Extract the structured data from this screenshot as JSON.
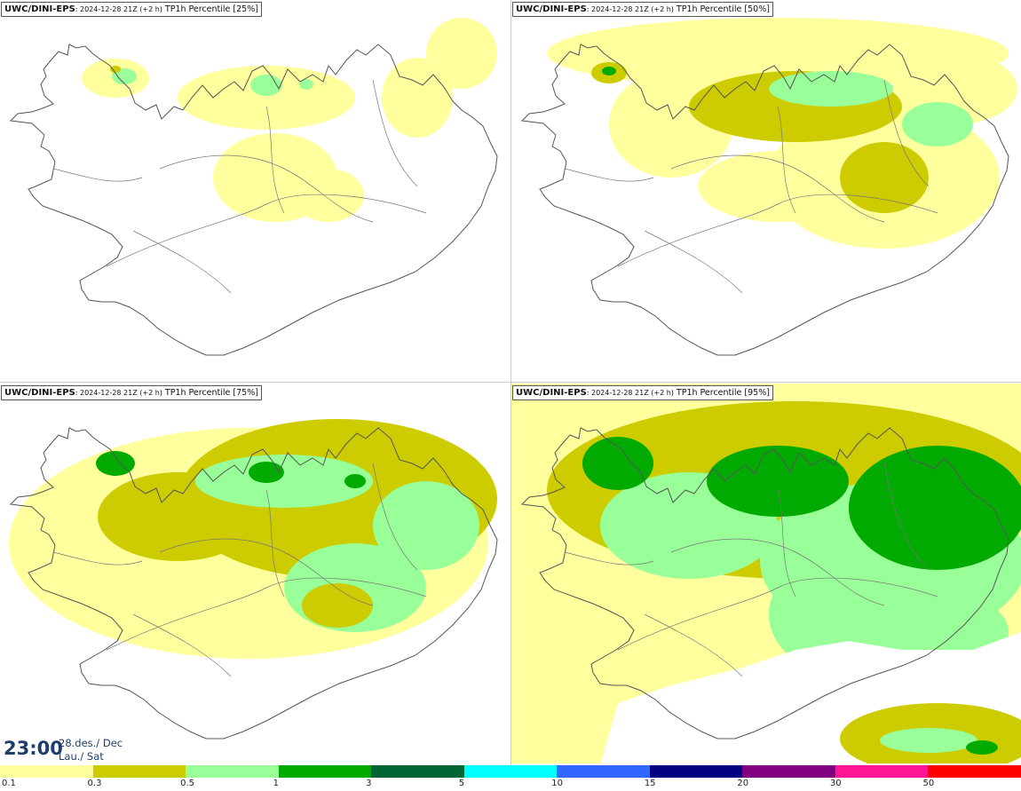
{
  "panels": [
    {
      "source": "UWC/DINI-EPS",
      "run": ": 2024-12-28 21Z (+2 h)",
      "field": " TP1h Percentile [25%]",
      "level": 0
    },
    {
      "source": "UWC/DINI-EPS",
      "run": ": 2024-12-28 21Z (+2 h)",
      "field": " TP1h Percentile [50%]",
      "level": 1
    },
    {
      "source": "UWC/DINI-EPS",
      "run": ": 2024-12-28 21Z (+2 h)",
      "field": " TP1h Percentile [75%]",
      "level": 2
    },
    {
      "source": "UWC/DINI-EPS",
      "run": ": 2024-12-28 21Z (+2 h)",
      "field": " TP1h Percentile [95%]",
      "level": 3
    }
  ],
  "valid_time": {
    "clock": "23:00",
    "date": "28.des./ Dec",
    "weekday": "Lau./ Sat"
  },
  "legend": {
    "colors": [
      "#ffff9e",
      "#cccc00",
      "#99ff99",
      "#00aa00",
      "#006633",
      "#00ffff",
      "#3366ff",
      "#000080",
      "#800080",
      "#ff1493",
      "#ff0000"
    ],
    "ticks": [
      "0.1",
      "0.3",
      "0.5",
      "1",
      "3",
      "5",
      "10",
      "15",
      "20",
      "30",
      "50"
    ]
  },
  "colors": {
    "land_outline": "#555555",
    "roads": "#777777"
  }
}
